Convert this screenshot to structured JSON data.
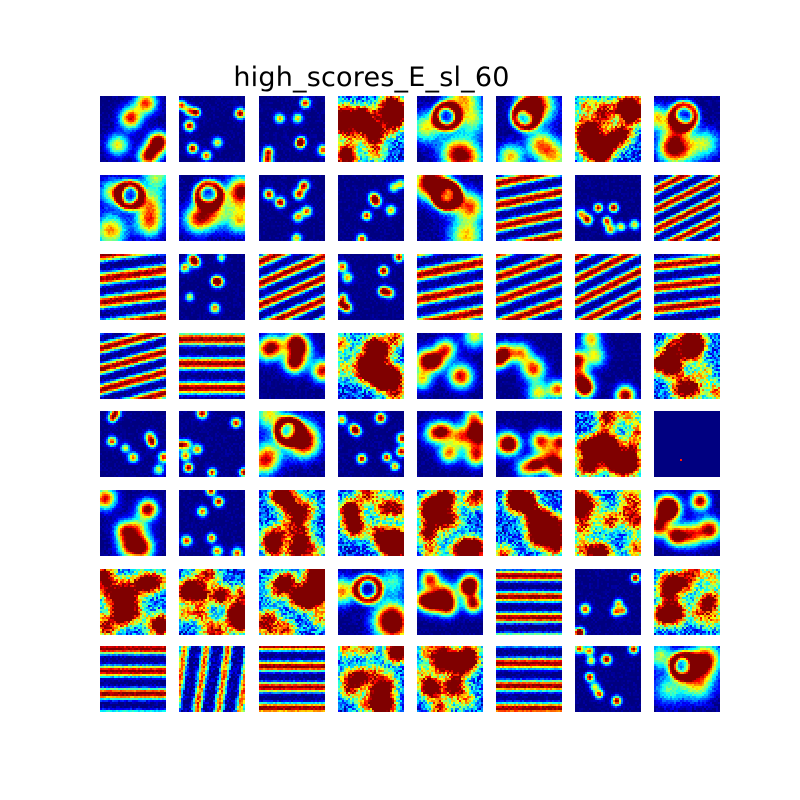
{
  "title": "high_scores_E_sl_60",
  "colormap": "jet",
  "colors": {
    "background": "#ffffff",
    "low": "#00008f",
    "high": "#800000"
  },
  "rows": 8,
  "cols": 8,
  "tile_patterns": [
    [
      "blobs",
      "sparse",
      "sparse",
      "noisy",
      "ring",
      "ring",
      "noisy",
      "ring"
    ],
    [
      "ring",
      "ring",
      "sparse",
      "sparse",
      "ring",
      "diag-stripes",
      "sparse",
      "diag-stripes"
    ],
    [
      "diag-stripes",
      "sparse",
      "diag-stripes",
      "sparse",
      "diag-stripes",
      "diag-stripes",
      "diag-stripes",
      "diag-stripes"
    ],
    [
      "diag-stripes",
      "h-stripes",
      "blobs",
      "noisy",
      "blobs",
      "blobs",
      "blobs",
      "noisy"
    ],
    [
      "sparse",
      "sparse",
      "ring",
      "sparse",
      "blobs",
      "blobs",
      "noisy",
      "empty"
    ],
    [
      "blobs",
      "sparse",
      "noisy",
      "noisy",
      "noisy",
      "noisy",
      "noisy",
      "blobs"
    ],
    [
      "noisy",
      "noisy",
      "noisy",
      "ring",
      "blobs",
      "h-stripes",
      "sparse",
      "noisy"
    ],
    [
      "h-stripes",
      "v-stripes",
      "h-stripes",
      "noisy",
      "noisy",
      "h-stripes",
      "sparse",
      "ring"
    ]
  ]
}
